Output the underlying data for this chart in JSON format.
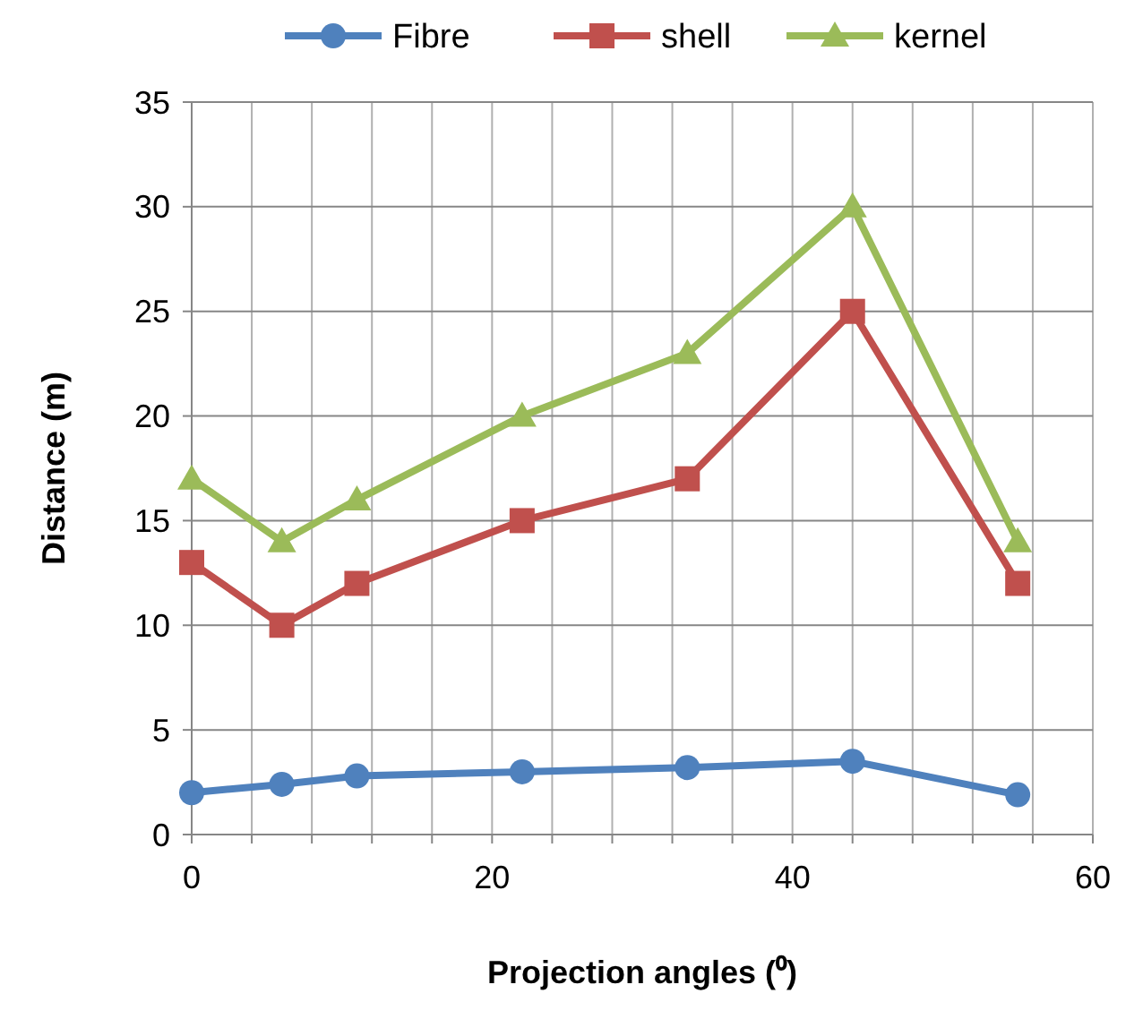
{
  "chart_data": {
    "type": "line",
    "xlabel": "Projection angles (⁰)",
    "ylabel": "Distance (m)",
    "x": [
      0,
      6,
      11,
      22,
      33,
      44,
      55
    ],
    "series": [
      {
        "name": "Fibre",
        "color": "#4f81bd",
        "marker": "circle",
        "values": [
          2,
          2.4,
          2.8,
          3,
          3.2,
          3.5,
          1.9
        ]
      },
      {
        "name": "shell",
        "color": "#c0504d",
        "marker": "square",
        "values": [
          13,
          10,
          12,
          15,
          17,
          25,
          12
        ]
      },
      {
        "name": "kernel",
        "color": "#9bbb59",
        "marker": "triangle",
        "values": [
          17,
          14,
          16,
          20,
          23,
          30,
          14
        ]
      }
    ],
    "xlim": [
      0,
      60
    ],
    "xticks": [
      0,
      {
        "value": 4,
        "label": null
      },
      {
        "value": 8,
        "label": null
      },
      {
        "value": 12,
        "label": null
      },
      {
        "value": 16,
        "label": null
      },
      20,
      {
        "value": 24,
        "label": null
      },
      {
        "value": 28,
        "label": null
      },
      {
        "value": 32,
        "label": null
      },
      {
        "value": 36,
        "label": null
      },
      40,
      {
        "value": 44,
        "label": null
      },
      {
        "value": 48,
        "label": null
      },
      {
        "value": 52,
        "label": null
      },
      {
        "value": 56,
        "label": null
      },
      60
    ],
    "ylim": [
      0,
      35
    ],
    "yticks": [
      0,
      5,
      10,
      15,
      20,
      25,
      30,
      35
    ],
    "grid": true,
    "legend": "top",
    "line_style": "solid"
  }
}
